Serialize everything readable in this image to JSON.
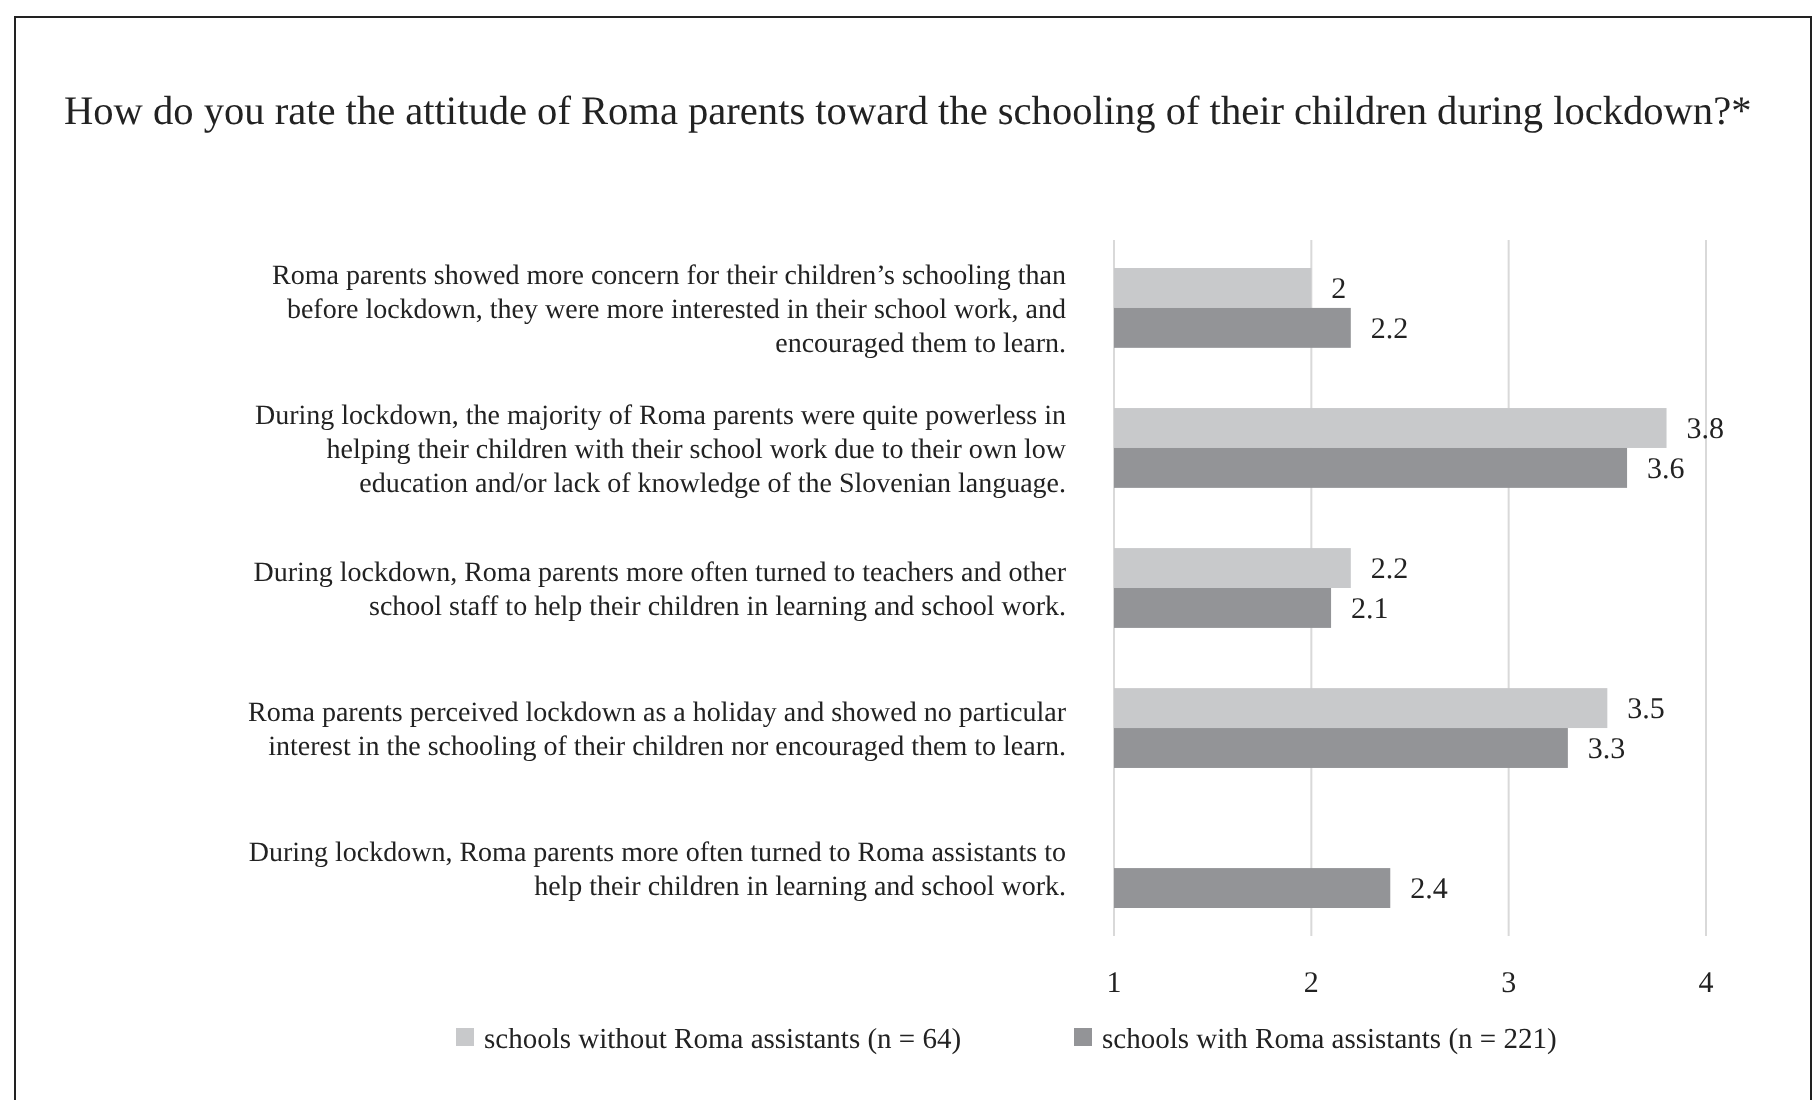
{
  "chart_data": {
    "type": "bar",
    "orientation": "horizontal",
    "title": "How do you rate the attitude of Roma parents toward the schooling of their children during lockdown?*",
    "categories": [
      "Roma parents showed more concern for their children’s schooling than before lockdown, they were more interested in their school work, and encouraged them to learn.",
      "During lockdown, the majority of Roma parents were quite powerless in helping their children with their school work due to their own low education and/or lack of knowledge of the Slovenian language.",
      "During lockdown, Roma parents more often turned to teachers and other school staff to help their children in learning and school work.",
      "Roma parents perceived lockdown as a holiday and showed no particular interest in the schooling of their children nor encouraged them to learn.",
      "During lockdown, Roma parents more often turned to Roma assistants to help their children in learning and school work."
    ],
    "series": [
      {
        "name": "schools without Roma assistants (n = 64)",
        "color": "#c8c9cb",
        "values": [
          2,
          3.8,
          2.2,
          3.5,
          null
        ]
      },
      {
        "name": "schools with Roma assistants (n = 221)",
        "color": "#939497",
        "values": [
          2.2,
          3.6,
          2.1,
          3.3,
          2.4
        ]
      }
    ],
    "xlim": [
      1,
      4
    ],
    "xticks": [
      1,
      2,
      3,
      4
    ],
    "grid": "x",
    "legend": "bottom",
    "data_labels": true
  }
}
